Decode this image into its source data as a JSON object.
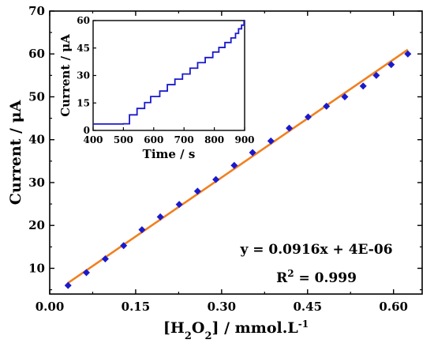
{
  "chart_data": [
    {
      "type": "scatter",
      "xlabel": "[H2O2] / mmol.L-1",
      "xlabel_parts": {
        "prefix": "[H",
        "sub1": "2",
        "mid": "O",
        "sub2": "2",
        "suffix": "] / mmol.L",
        "sup": "-1"
      },
      "ylabel": "Current / μA",
      "xlim": [
        0.0,
        0.65
      ],
      "ylim": [
        4,
        70
      ],
      "xticks": [
        0.0,
        0.15,
        0.3,
        0.45,
        0.6
      ],
      "xtick_labels": [
        "0.00",
        "0.15",
        "0.30",
        "0.45",
        "0.60"
      ],
      "yticks": [
        10,
        20,
        30,
        40,
        50,
        60,
        70
      ],
      "ytick_labels": [
        "10",
        "20",
        "30",
        "40",
        "50",
        "60",
        "70"
      ],
      "grid": false,
      "series": [
        {
          "marker": "diamond",
          "color": "#1a1acc",
          "x": [
            0.032,
            0.064,
            0.097,
            0.129,
            0.161,
            0.193,
            0.226,
            0.258,
            0.29,
            0.322,
            0.354,
            0.386,
            0.418,
            0.451,
            0.483,
            0.515,
            0.547,
            0.57,
            0.596,
            0.625
          ],
          "y": [
            6.0,
            9.0,
            12.2,
            15.3,
            19.0,
            22.0,
            24.9,
            28.0,
            30.7,
            34.0,
            37.0,
            39.7,
            42.7,
            45.3,
            47.8,
            50.0,
            52.5,
            55.0,
            57.5,
            60.0
          ]
        }
      ],
      "fit_line": {
        "color": "#f08020",
        "x": [
          0.032,
          0.625
        ],
        "y": [
          6.6,
          61.0
        ]
      },
      "annotations": {
        "equation": "y = 0.0916x + 4E-06",
        "r2_prefix": "R",
        "r2_sup": "2",
        "r2_suffix": " = 0.999"
      }
    },
    {
      "type": "line",
      "name": "inset",
      "color": "#1a1acc",
      "xlabel": "Time / s",
      "ylabel": "Current / μA",
      "xlim": [
        400,
        900
      ],
      "ylim": [
        0,
        60
      ],
      "xticks": [
        400,
        500,
        600,
        700,
        800,
        900
      ],
      "xtick_labels": [
        "400",
        "500",
        "600",
        "700",
        "800",
        "900"
      ],
      "yticks": [
        0,
        15,
        30,
        45,
        60
      ],
      "ytick_labels": [
        "0",
        "15",
        "30",
        "45",
        "60"
      ],
      "steps": [
        [
          400,
          3.5
        ],
        [
          500,
          3.6
        ],
        [
          520,
          8.5
        ],
        [
          545,
          12.0
        ],
        [
          570,
          15.2
        ],
        [
          590,
          18.5
        ],
        [
          620,
          21.5
        ],
        [
          645,
          25.0
        ],
        [
          670,
          28.0
        ],
        [
          695,
          30.8
        ],
        [
          720,
          34.0
        ],
        [
          745,
          37.0
        ],
        [
          770,
          39.8
        ],
        [
          795,
          42.8
        ],
        [
          815,
          45.3
        ],
        [
          835,
          48.0
        ],
        [
          855,
          50.5
        ],
        [
          870,
          53.0
        ],
        [
          880,
          55.5
        ],
        [
          890,
          57.5
        ],
        [
          898,
          60.0
        ]
      ]
    }
  ]
}
